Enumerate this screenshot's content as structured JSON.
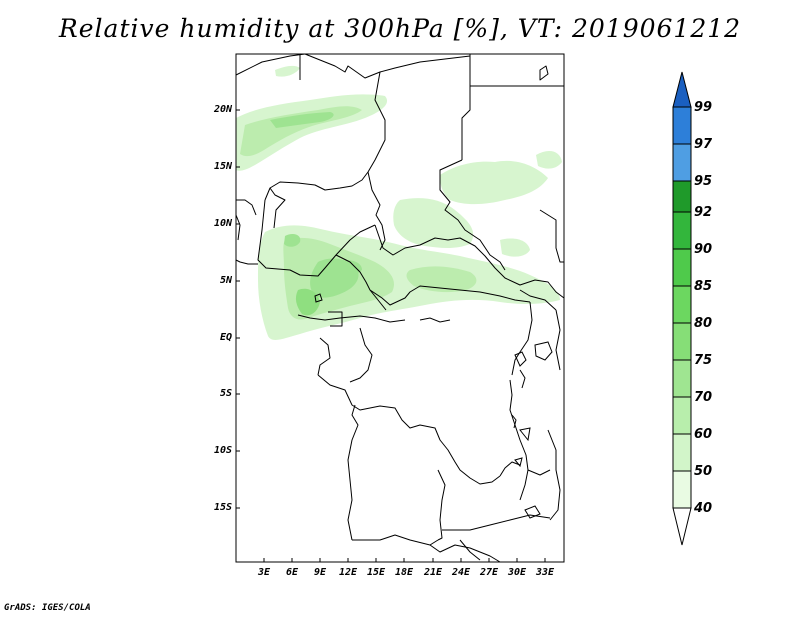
{
  "title": "Relative humidity at 300hPa [%], VT: 2019061212",
  "credit": "GrADS: IGES/COLA",
  "map": {
    "projection": "lat-lon",
    "region": "Central Africa",
    "lon_range": [
      0,
      35
    ],
    "lat_range": [
      -20,
      25
    ],
    "lat_labels": [
      "20N",
      "15N",
      "10N",
      "5N",
      "EQ",
      "5S",
      "10S",
      "15S"
    ],
    "lon_labels": [
      "3E",
      "6E",
      "9E",
      "12E",
      "15E",
      "18E",
      "21E",
      "24E",
      "27E",
      "30E",
      "33E"
    ]
  },
  "colorbar": {
    "labels": [
      "40",
      "50",
      "60",
      "70",
      "75",
      "80",
      "85",
      "90",
      "92",
      "95",
      "97",
      "99"
    ],
    "colors": [
      "#ffffff",
      "#e6fae1",
      "#cdf4c4",
      "#b3eca7",
      "#9ae48b",
      "#80dc70",
      "#63d159",
      "#46c146",
      "#2fad37",
      "#1a9228",
      "#1f7b1e",
      "#4f9ee3",
      "#2d7fd9",
      "#1a5fc0"
    ]
  },
  "legend_colors": {
    "light_green": "#d7f5cf",
    "mid_green": "#b5eba8",
    "dark_green": "#8fdf80",
    "boundary": "#000000"
  }
}
